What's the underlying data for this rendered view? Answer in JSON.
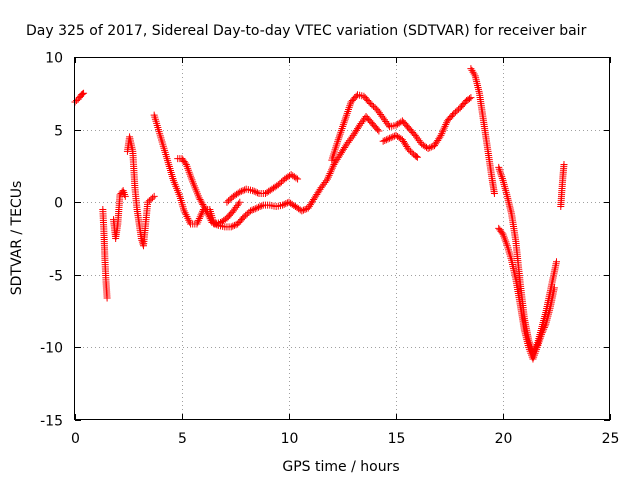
{
  "chart_data": {
    "type": "scatter",
    "title": "Day 325 of 2017, Sidereal Day-to-day VTEC variation (SDTVAR) for receiver bair",
    "xlabel": "GPS time / hours",
    "ylabel": "SDTVAR / TECUs",
    "xlim": [
      0,
      25
    ],
    "ylim": [
      -15,
      10
    ],
    "x_ticks": [
      0,
      5,
      10,
      15,
      20,
      25
    ],
    "y_ticks": [
      -15,
      -10,
      -5,
      0,
      5,
      10
    ],
    "grid": true,
    "marker": "plus",
    "colors": {
      "series": "#ff0000",
      "grid": "#a0a0a0",
      "axes": "#000000"
    },
    "segments": [
      {
        "points": [
          [
            0.0,
            6.9
          ],
          [
            0.15,
            7.1
          ],
          [
            0.3,
            7.4
          ],
          [
            0.4,
            7.5
          ]
        ]
      },
      {
        "points": [
          [
            1.3,
            -0.5
          ],
          [
            1.35,
            -2.0
          ],
          [
            1.4,
            -4.0
          ],
          [
            1.45,
            -5.5
          ],
          [
            1.5,
            -6.6
          ]
        ]
      },
      {
        "points": [
          [
            1.8,
            -1.2
          ],
          [
            1.9,
            -2.5
          ],
          [
            2.0,
            -1.5
          ],
          [
            2.1,
            0.5
          ],
          [
            2.25,
            0.8
          ],
          [
            2.35,
            0.4
          ]
        ]
      },
      {
        "points": [
          [
            2.45,
            3.5
          ],
          [
            2.55,
            4.5
          ],
          [
            2.7,
            3.5
          ],
          [
            2.8,
            1.0
          ],
          [
            2.9,
            -0.5
          ],
          [
            3.0,
            -1.5
          ],
          [
            3.1,
            -2.5
          ],
          [
            3.2,
            -3.0
          ],
          [
            3.3,
            -1.5
          ],
          [
            3.4,
            0.0
          ],
          [
            3.55,
            0.2
          ],
          [
            3.7,
            0.4
          ]
        ]
      },
      {
        "points": [
          [
            3.7,
            6.0
          ],
          [
            3.9,
            5.0
          ],
          [
            4.1,
            4.0
          ],
          [
            4.3,
            3.0
          ],
          [
            4.6,
            1.5
          ],
          [
            4.9,
            0.4
          ],
          [
            5.1,
            -0.6
          ],
          [
            5.4,
            -1.5
          ],
          [
            5.7,
            -1.5
          ],
          [
            6.0,
            -0.5
          ],
          [
            6.3,
            -0.5
          ],
          [
            6.5,
            -1.5
          ],
          [
            6.8,
            -1.4
          ],
          [
            7.1,
            -1.1
          ],
          [
            7.4,
            -0.6
          ],
          [
            7.7,
            0.0
          ]
        ]
      },
      {
        "points": [
          [
            4.8,
            3.0
          ],
          [
            5.0,
            3.0
          ],
          [
            5.2,
            2.6
          ],
          [
            5.5,
            1.4
          ],
          [
            5.8,
            0.3
          ],
          [
            6.1,
            -0.5
          ],
          [
            6.4,
            -1.4
          ],
          [
            6.7,
            -1.6
          ],
          [
            7.0,
            -1.7
          ],
          [
            7.3,
            -1.7
          ],
          [
            7.6,
            -1.5
          ],
          [
            7.9,
            -1.0
          ],
          [
            8.2,
            -0.6
          ],
          [
            8.5,
            -0.4
          ],
          [
            8.8,
            -0.2
          ],
          [
            9.1,
            -0.2
          ],
          [
            9.4,
            -0.3
          ],
          [
            9.7,
            -0.2
          ],
          [
            10.0,
            0.0
          ],
          [
            10.3,
            -0.3
          ],
          [
            10.6,
            -0.6
          ],
          [
            10.9,
            -0.4
          ],
          [
            11.2,
            0.3
          ],
          [
            11.5,
            1.0
          ],
          [
            11.8,
            1.6
          ],
          [
            12.1,
            2.6
          ],
          [
            12.4,
            3.3
          ],
          [
            12.7,
            4.0
          ],
          [
            13.0,
            4.6
          ],
          [
            13.3,
            5.3
          ],
          [
            13.6,
            5.9
          ],
          [
            13.9,
            5.4
          ],
          [
            14.2,
            4.9
          ]
        ]
      },
      {
        "points": [
          [
            7.1,
            0.0
          ],
          [
            7.4,
            0.4
          ],
          [
            7.7,
            0.7
          ],
          [
            8.0,
            0.9
          ],
          [
            8.3,
            0.8
          ],
          [
            8.6,
            0.6
          ],
          [
            8.9,
            0.6
          ],
          [
            9.2,
            0.9
          ],
          [
            9.5,
            1.2
          ],
          [
            9.8,
            1.6
          ],
          [
            10.1,
            1.9
          ],
          [
            10.4,
            1.6
          ]
        ]
      },
      {
        "points": [
          [
            12.0,
            2.9
          ],
          [
            12.3,
            4.3
          ],
          [
            12.6,
            5.6
          ],
          [
            12.9,
            6.9
          ],
          [
            13.2,
            7.4
          ],
          [
            13.5,
            7.3
          ],
          [
            13.8,
            6.8
          ],
          [
            14.1,
            6.4
          ],
          [
            14.4,
            5.8
          ],
          [
            14.7,
            5.2
          ],
          [
            15.0,
            5.3
          ],
          [
            15.3,
            5.6
          ],
          [
            15.6,
            5.1
          ],
          [
            15.9,
            4.6
          ],
          [
            16.2,
            4.0
          ],
          [
            16.5,
            3.7
          ],
          [
            16.8,
            3.9
          ],
          [
            17.1,
            4.6
          ],
          [
            17.4,
            5.6
          ],
          [
            17.7,
            6.1
          ],
          [
            18.0,
            6.5
          ],
          [
            18.3,
            7.0
          ],
          [
            18.5,
            7.2
          ]
        ]
      },
      {
        "points": [
          [
            14.4,
            4.2
          ],
          [
            14.7,
            4.4
          ],
          [
            15.0,
            4.6
          ],
          [
            15.3,
            4.3
          ],
          [
            15.6,
            3.6
          ],
          [
            15.9,
            3.2
          ],
          [
            16.0,
            3.1
          ]
        ]
      },
      {
        "points": [
          [
            18.5,
            9.2
          ],
          [
            18.7,
            8.7
          ],
          [
            18.9,
            7.5
          ],
          [
            19.1,
            5.5
          ],
          [
            19.3,
            3.5
          ],
          [
            19.5,
            1.5
          ],
          [
            19.6,
            0.6
          ]
        ]
      },
      {
        "points": [
          [
            19.8,
            2.4
          ],
          [
            20.0,
            1.5
          ],
          [
            20.2,
            0.4
          ],
          [
            20.4,
            -0.8
          ],
          [
            20.6,
            -2.7
          ],
          [
            20.8,
            -5.5
          ],
          [
            21.0,
            -8.0
          ],
          [
            21.2,
            -9.5
          ],
          [
            21.4,
            -10.3
          ],
          [
            21.6,
            -9.8
          ],
          [
            21.8,
            -8.7
          ],
          [
            22.0,
            -7.6
          ],
          [
            22.2,
            -6.2
          ],
          [
            22.4,
            -4.8
          ],
          [
            22.5,
            -4.1
          ]
        ]
      },
      {
        "points": [
          [
            19.8,
            -1.8
          ],
          [
            20.0,
            -2.2
          ],
          [
            20.2,
            -3.0
          ],
          [
            20.4,
            -4.0
          ],
          [
            20.6,
            -5.3
          ],
          [
            20.8,
            -7.0
          ],
          [
            21.0,
            -8.8
          ],
          [
            21.2,
            -10.0
          ],
          [
            21.4,
            -10.8
          ],
          [
            21.6,
            -10.0
          ],
          [
            21.8,
            -9.1
          ],
          [
            22.0,
            -8.4
          ],
          [
            22.2,
            -7.3
          ],
          [
            22.4,
            -5.9
          ]
        ]
      },
      {
        "points": [
          [
            22.7,
            -0.3
          ],
          [
            22.75,
            0.8
          ],
          [
            22.8,
            1.8
          ],
          [
            22.85,
            2.6
          ]
        ]
      }
    ]
  }
}
